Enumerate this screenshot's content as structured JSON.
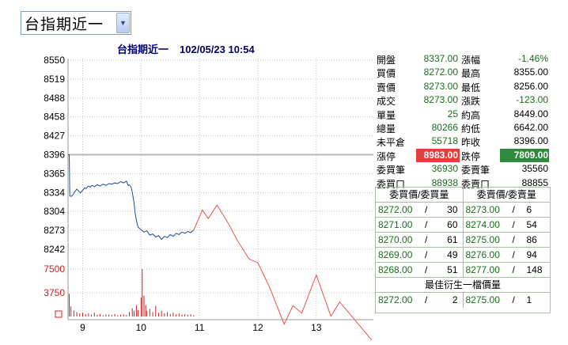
{
  "selector": {
    "label": "台指期近一"
  },
  "header": {
    "title": "台指期近一",
    "datetime": "102/05/23 10:54"
  },
  "info": {
    "rows": [
      {
        "l1": "開盤",
        "v1": "8337.00",
        "l2": "漲幅",
        "v2": "-1.46%"
      },
      {
        "l1": "買價",
        "v1": "8272.00",
        "l2": "最高",
        "v2": "8355.00"
      },
      {
        "l1": "賣價",
        "v1": "8273.00",
        "l2": "最低",
        "v2": "8256.00"
      },
      {
        "l1": "成交",
        "v1": "8273.00",
        "l2": "漲跌",
        "v2": "-123.00"
      },
      {
        "l1": "單量",
        "v1": "25",
        "l2": "約高",
        "v2": "8449.00"
      },
      {
        "l1": "總量",
        "v1": "80266",
        "l2": "約低",
        "v2": "6642.00"
      },
      {
        "l1": "未平倉",
        "v1": "55718",
        "l2": "昨收",
        "v2": "8396.00"
      },
      {
        "l1": "漲停",
        "v1": "8983.00",
        "l2": "跌停",
        "v2": "7809.00"
      },
      {
        "l1": "委買筆",
        "v1": "36930",
        "l2": "委賣筆",
        "v2": "35560"
      },
      {
        "l1": "委買口",
        "v1": "88938",
        "l2": "委賣口",
        "v2": "88855"
      }
    ]
  },
  "book": {
    "bid_header": "委買價/委買量",
    "ask_header": "委賣價/委賣量",
    "sep": "/",
    "rows": [
      {
        "bid": "8272.00",
        "bq": "30",
        "ask": "8273.00",
        "aq": "6"
      },
      {
        "bid": "8271.00",
        "bq": "60",
        "ask": "8274.00",
        "aq": "54"
      },
      {
        "bid": "8270.00",
        "bq": "61",
        "ask": "8275.00",
        "aq": "86"
      },
      {
        "bid": "8269.00",
        "bq": "49",
        "ask": "8276.00",
        "aq": "94"
      },
      {
        "bid": "8268.00",
        "bq": "51",
        "ask": "8277.00",
        "aq": "148"
      }
    ],
    "best_header": "最佳衍生一檔價量",
    "best": {
      "bid": "8272.00",
      "bq": "2",
      "ask": "8275.00",
      "aq": "1"
    }
  },
  "colors": {
    "price_line": "#1f4aa0",
    "forecast_line": "#ef5050",
    "volume": "#cc2020",
    "ref_line": "#b8b8b8"
  },
  "chart_data": {
    "type": "line",
    "y_ticks": [
      "8550",
      "8519",
      "8488",
      "8458",
      "8427",
      "8396",
      "8365",
      "8334",
      "8304",
      "8273",
      "8242"
    ],
    "vol_ticks": [
      "7500",
      "3750"
    ],
    "x_ticks": [
      "9",
      "10",
      "11",
      "12",
      "13"
    ],
    "ref_price": 8396,
    "ylim": [
      8242,
      8550
    ],
    "price_series": [
      [
        8.75,
        8396
      ],
      [
        8.77,
        8396
      ],
      [
        8.78,
        8329
      ],
      [
        8.8,
        8328
      ],
      [
        8.83,
        8330
      ],
      [
        8.86,
        8335
      ],
      [
        8.9,
        8340
      ],
      [
        8.93,
        8337
      ],
      [
        8.96,
        8334
      ],
      [
        9.0,
        8338
      ],
      [
        9.03,
        8342
      ],
      [
        9.06,
        8341
      ],
      [
        9.1,
        8345
      ],
      [
        9.13,
        8343
      ],
      [
        9.16,
        8346
      ],
      [
        9.2,
        8344
      ],
      [
        9.25,
        8347
      ],
      [
        9.3,
        8345
      ],
      [
        9.35,
        8348
      ],
      [
        9.4,
        8346
      ],
      [
        9.45,
        8349
      ],
      [
        9.5,
        8348
      ],
      [
        9.55,
        8350
      ],
      [
        9.6,
        8349
      ],
      [
        9.65,
        8352
      ],
      [
        9.7,
        8350
      ],
      [
        9.75,
        8353
      ],
      [
        9.78,
        8346
      ],
      [
        9.8,
        8347
      ],
      [
        9.83,
        8343
      ],
      [
        9.85,
        8335
      ],
      [
        9.88,
        8318
      ],
      [
        9.9,
        8300
      ],
      [
        9.93,
        8285
      ],
      [
        9.95,
        8278
      ],
      [
        10.0,
        8274
      ],
      [
        10.05,
        8270
      ],
      [
        10.1,
        8272
      ],
      [
        10.15,
        8265
      ],
      [
        10.2,
        8267
      ],
      [
        10.25,
        8262
      ],
      [
        10.3,
        8264
      ],
      [
        10.35,
        8258
      ],
      [
        10.4,
        8263
      ],
      [
        10.45,
        8261
      ],
      [
        10.5,
        8266
      ],
      [
        10.55,
        8263
      ],
      [
        10.6,
        8268
      ],
      [
        10.65,
        8266
      ],
      [
        10.7,
        8270
      ],
      [
        10.75,
        8268
      ],
      [
        10.8,
        8271
      ],
      [
        10.85,
        8269
      ],
      [
        10.9,
        8273
      ]
    ],
    "forecast_series": [
      [
        10.9,
        8273
      ],
      [
        11.05,
        8306
      ],
      [
        11.15,
        8292
      ],
      [
        11.3,
        8314
      ],
      [
        11.5,
        8283
      ],
      [
        11.65,
        8256
      ],
      [
        11.85,
        8226
      ],
      [
        12.0,
        8220
      ],
      [
        12.2,
        8180
      ],
      [
        12.45,
        8120
      ],
      [
        12.6,
        8150
      ],
      [
        12.75,
        8138
      ],
      [
        13.0,
        8200
      ],
      [
        13.25,
        8133
      ],
      [
        13.4,
        8156
      ],
      [
        13.95,
        8094
      ]
    ],
    "volume_series": [
      [
        8.77,
        3600
      ],
      [
        8.8,
        1600
      ],
      [
        8.85,
        900
      ],
      [
        8.9,
        700
      ],
      [
        8.95,
        500
      ],
      [
        9.0,
        600
      ],
      [
        9.05,
        350
      ],
      [
        9.1,
        500
      ],
      [
        9.15,
        300
      ],
      [
        9.2,
        600
      ],
      [
        9.25,
        250
      ],
      [
        9.3,
        400
      ],
      [
        9.35,
        200
      ],
      [
        9.4,
        350
      ],
      [
        9.45,
        300
      ],
      [
        9.5,
        250
      ],
      [
        9.55,
        400
      ],
      [
        9.6,
        200
      ],
      [
        9.65,
        300
      ],
      [
        9.7,
        350
      ],
      [
        9.75,
        250
      ],
      [
        9.8,
        700
      ],
      [
        9.85,
        1300
      ],
      [
        9.88,
        900
      ],
      [
        9.92,
        1800
      ],
      [
        9.95,
        1000
      ],
      [
        10.0,
        3000
      ],
      [
        10.02,
        7500
      ],
      [
        10.05,
        3300
      ],
      [
        10.08,
        1800
      ],
      [
        10.1,
        900
      ],
      [
        10.15,
        1200
      ],
      [
        10.2,
        700
      ],
      [
        10.25,
        1700
      ],
      [
        10.3,
        600
      ],
      [
        10.35,
        900
      ],
      [
        10.4,
        500
      ],
      [
        10.45,
        700
      ],
      [
        10.5,
        400
      ],
      [
        10.55,
        600
      ],
      [
        10.6,
        350
      ],
      [
        10.65,
        500
      ],
      [
        10.7,
        300
      ],
      [
        10.75,
        400
      ],
      [
        10.8,
        300
      ],
      [
        10.85,
        350
      ],
      [
        10.9,
        200
      ]
    ]
  }
}
